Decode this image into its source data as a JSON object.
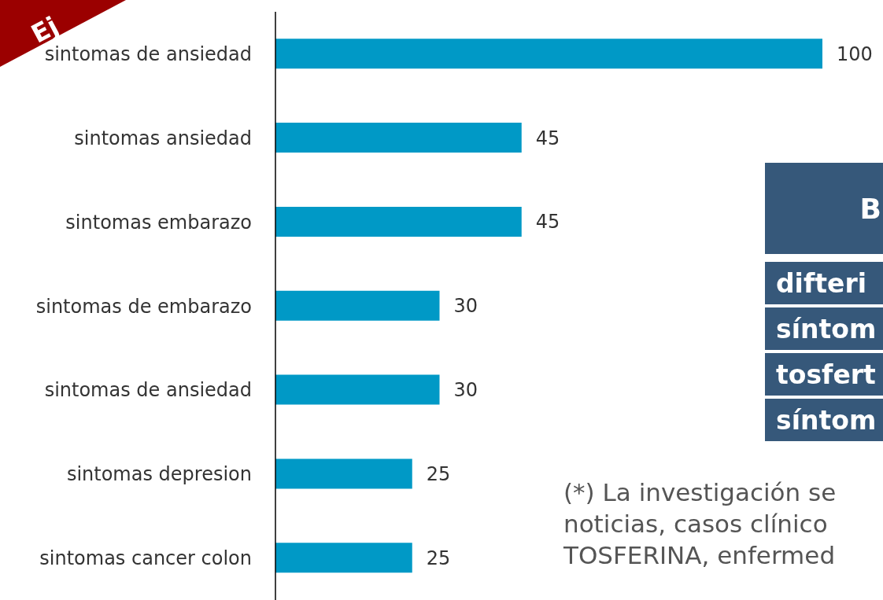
{
  "chart_data": {
    "type": "bar",
    "orientation": "horizontal",
    "data_labels": true,
    "categories": [
      "sintomas de ansiedad",
      "sintomas ansiedad",
      "sintomas embarazo",
      "sintomas de embarazo",
      "sintomas de ansiedad",
      "sintomas depresion",
      "sintomas cancer colon"
    ],
    "values": [
      100,
      45,
      45,
      30,
      30,
      25,
      25
    ],
    "color": "#0099c6",
    "annotations": [
      "Ej",
      "B",
      "difteri",
      "síntom",
      "tosfert",
      "síntom",
      "(*) La investigación se",
      "noticias, casos clínico",
      "TOSFERINA, enfermed"
    ]
  }
}
